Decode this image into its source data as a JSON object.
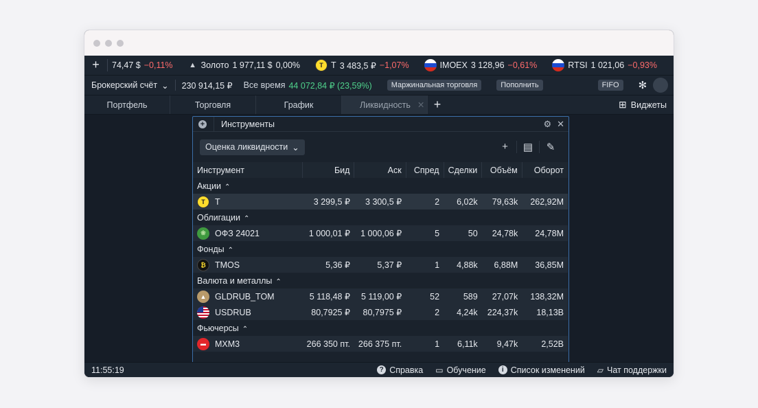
{
  "ticker": {
    "add_label": "+",
    "items": [
      {
        "name": "",
        "price": "74,47 $",
        "change": "−0,11%",
        "icon": "none"
      },
      {
        "name": "Золото",
        "price": "1 977,11 $",
        "change": "0,00%",
        "icon": "gold-icon"
      },
      {
        "name": "T",
        "price": "3 483,5 ₽",
        "change": "−1,07%",
        "icon": "t-logo-icon"
      },
      {
        "name": "IMOEX",
        "price": "3 128,96",
        "change": "−0,61%",
        "icon": "russia-flag-icon"
      },
      {
        "name": "RTSI",
        "price": "1 021,06",
        "change": "−0,93%",
        "icon": "russia-flag-icon"
      }
    ]
  },
  "account": {
    "selector_label": "Брокерский счёт",
    "balance": "230 914,15 ₽",
    "all_time_label": "Все время",
    "all_time_value": "44 072,84 ₽ (23,59%)",
    "margin_label": "Маржинальная торговля",
    "topup_label": "Пополнить",
    "fifo_label": "FIFO"
  },
  "tabs": [
    {
      "label": "Портфель"
    },
    {
      "label": "Торговля"
    },
    {
      "label": "График"
    },
    {
      "label": "Ликвидность"
    }
  ],
  "widgets_label": "Виджеты",
  "panel": {
    "title": "Инструменты",
    "dropdown_label": "Оценка ликвидности",
    "columns": [
      "Инструмент",
      "Бид",
      "Аск",
      "Спред",
      "Сделки",
      "Объём",
      "Оборот"
    ],
    "groups": [
      {
        "label": "Акции",
        "rows": [
          {
            "name": "T",
            "bid": "3 299,5 ₽",
            "ask": "3 300,5 ₽",
            "spread": "2",
            "deals": "6,02k",
            "volume": "79,63k",
            "turnover": "262,92M"
          }
        ]
      },
      {
        "label": "Облигации",
        "rows": [
          {
            "name": "ОФЗ 24021",
            "bid": "1 000,01 ₽",
            "ask": "1 000,06 ₽",
            "spread": "5",
            "deals": "50",
            "volume": "24,78k",
            "turnover": "24,78M"
          }
        ]
      },
      {
        "label": "Фонды",
        "rows": [
          {
            "name": "TMOS",
            "bid": "5,36 ₽",
            "ask": "5,37 ₽",
            "spread": "1",
            "deals": "4,88k",
            "volume": "6,88M",
            "turnover": "36,85M"
          }
        ]
      },
      {
        "label": "Валюта и металлы",
        "rows": [
          {
            "name": "GLDRUB_TOM",
            "bid": "5 118,48 ₽",
            "ask": "5 119,00 ₽",
            "spread": "52",
            "deals": "589",
            "volume": "27,07k",
            "turnover": "138,32M"
          },
          {
            "name": "USDRUB",
            "bid": "80,7925 ₽",
            "ask": "80,7975 ₽",
            "spread": "2",
            "deals": "4,24k",
            "volume": "224,37k",
            "turnover": "18,13B"
          }
        ]
      },
      {
        "label": "Фьючерсы",
        "rows": [
          {
            "name": "MXM3",
            "bid": "266 350 пт.",
            "ask": "266 375 пт.",
            "spread": "1",
            "deals": "6,11k",
            "volume": "9,47k",
            "turnover": "2,52B"
          }
        ]
      }
    ]
  },
  "status": {
    "time": "11:55:19",
    "help": "Справка",
    "learning": "Обучение",
    "changelog": "Список изменений",
    "support": "Чат поддержки"
  },
  "colors": {
    "negative": "#ff6b6b",
    "positive": "#4fd18b",
    "panel_border": "#3b6ea8"
  }
}
